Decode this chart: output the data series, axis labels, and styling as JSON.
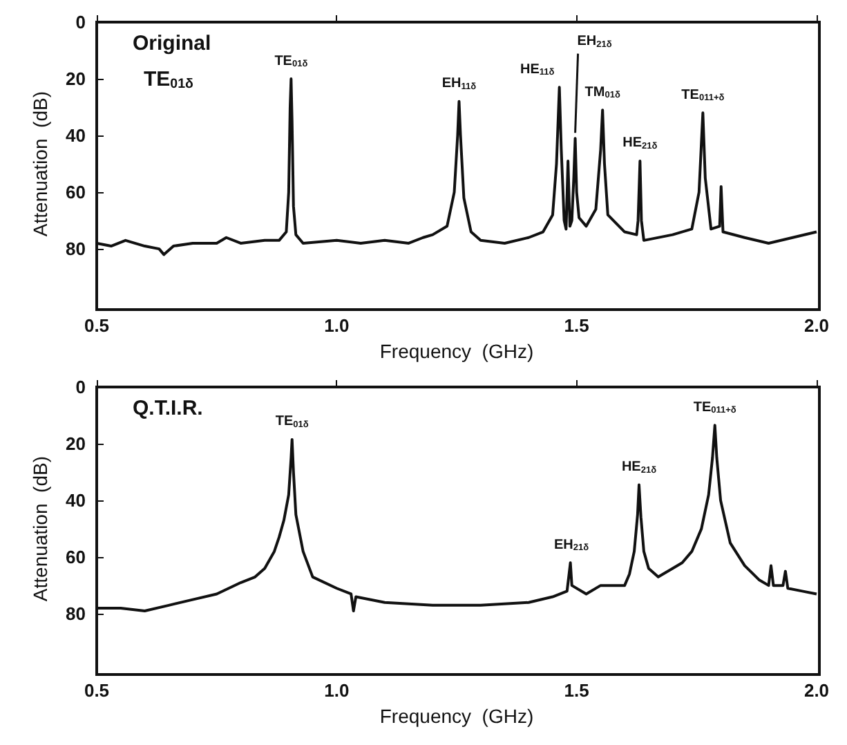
{
  "chart_data": [
    {
      "type": "line",
      "xlabel": "Frequency  (GHz)",
      "ylabel": "Attenuation  (dB)",
      "xlim": [
        0.5,
        2.0
      ],
      "ylim": [
        100,
        0
      ],
      "xticks": [
        {
          "value": 0.5,
          "label": "0.5"
        },
        {
          "value": 1.0,
          "label": "1.0"
        },
        {
          "value": 1.5,
          "label": "1.5"
        },
        {
          "value": 2.0,
          "label": "2.0"
        }
      ],
      "yticks": [
        0,
        20,
        40,
        60,
        80
      ],
      "grid": false,
      "marker": "none",
      "line_style": "solid",
      "series": [
        {
          "color": "#111111",
          "x": [
            0.5,
            0.53,
            0.56,
            0.6,
            0.63,
            0.64,
            0.66,
            0.7,
            0.75,
            0.77,
            0.8,
            0.85,
            0.88,
            0.895,
            0.9,
            0.903,
            0.905,
            0.907,
            0.91,
            0.915,
            0.93,
            1.0,
            1.05,
            1.1,
            1.15,
            1.18,
            1.2,
            1.23,
            1.245,
            1.252,
            1.255,
            1.258,
            1.265,
            1.28,
            1.3,
            1.35,
            1.4,
            1.43,
            1.45,
            1.458,
            1.464,
            1.468,
            1.474,
            1.478,
            1.482,
            1.486,
            1.49,
            1.494,
            1.497,
            1.5,
            1.505,
            1.52,
            1.54,
            1.55,
            1.554,
            1.558,
            1.565,
            1.6,
            1.625,
            1.628,
            1.632,
            1.635,
            1.64,
            1.7,
            1.74,
            1.755,
            1.763,
            1.768,
            1.78,
            1.798,
            1.801,
            1.805,
            1.85,
            1.9,
            1.95,
            2.0
          ],
          "values": [
            78,
            79,
            77,
            79,
            80,
            82,
            79,
            78,
            78,
            76,
            78,
            77,
            77,
            74,
            60,
            30,
            20,
            35,
            65,
            75,
            78,
            77,
            78,
            77,
            78,
            76,
            75,
            72,
            60,
            40,
            28,
            40,
            62,
            74,
            77,
            78,
            76,
            74,
            68,
            50,
            23,
            45,
            70,
            73,
            49,
            72,
            70,
            55,
            41,
            60,
            69,
            72,
            66,
            45,
            31,
            50,
            68,
            74,
            75,
            70,
            49,
            70,
            77,
            75,
            73,
            60,
            32,
            55,
            73,
            72,
            58,
            74,
            76,
            78,
            76,
            74
          ]
        }
      ],
      "annotations": [
        "Original",
        "TE$_{01δ}$",
        {
          "text": "TE$_{01δ}$",
          "x": 0.905,
          "y": 20
        },
        {
          "text": "EH$_{11δ}$",
          "x": 1.255,
          "y": 28
        },
        {
          "text": "HE$_{11δ}$",
          "x": 1.464,
          "y": 23
        },
        {
          "text": "EH$_{21δ}$",
          "x": 1.497,
          "y": 41
        },
        {
          "text": "TM$_{01δ}$",
          "x": 1.554,
          "y": 31
        },
        {
          "text": "HE$_{21δ}$",
          "x": 1.632,
          "y": 49
        },
        {
          "text": "TE$_{011+δ}$",
          "x": 1.763,
          "y": 32
        }
      ]
    },
    {
      "type": "line",
      "xlabel": "Frequency  (GHz)",
      "ylabel": "Attenuation  (dB)",
      "xlim": [
        0.5,
        2.0
      ],
      "ylim": [
        100,
        0
      ],
      "xticks": [
        {
          "value": 0.5,
          "label": "0.5"
        },
        {
          "value": 1.0,
          "label": "1.0"
        },
        {
          "value": 1.5,
          "label": "1.5"
        },
        {
          "value": 2.0,
          "label": "2.0"
        }
      ],
      "yticks": [
        0,
        20,
        40,
        60,
        80
      ],
      "grid": false,
      "marker": "none",
      "line_style": "solid",
      "series": [
        {
          "color": "#111111",
          "x": [
            0.5,
            0.55,
            0.6,
            0.65,
            0.7,
            0.75,
            0.8,
            0.83,
            0.85,
            0.87,
            0.88,
            0.89,
            0.9,
            0.905,
            0.907,
            0.91,
            0.915,
            0.93,
            0.95,
            1.0,
            1.03,
            1.035,
            1.04,
            1.1,
            1.2,
            1.3,
            1.4,
            1.45,
            1.48,
            1.487,
            1.49,
            1.52,
            1.55,
            1.6,
            1.61,
            1.62,
            1.627,
            1.63,
            1.634,
            1.64,
            1.65,
            1.67,
            1.7,
            1.72,
            1.74,
            1.76,
            1.775,
            1.783,
            1.788,
            1.792,
            1.8,
            1.82,
            1.85,
            1.88,
            1.9,
            1.905,
            1.91,
            1.93,
            1.935,
            1.94,
            1.97,
            2.0
          ],
          "values": [
            78,
            78,
            79,
            77,
            75,
            73,
            69,
            67,
            64,
            58,
            53,
            47,
            38,
            25,
            18.5,
            30,
            45,
            58,
            67,
            71,
            73,
            79,
            74,
            76,
            77,
            77,
            76,
            74,
            72,
            62,
            70,
            73,
            70,
            70,
            66,
            58,
            45,
            34.5,
            46,
            58,
            64,
            67,
            64,
            62,
            58,
            50,
            38,
            25,
            13.5,
            25,
            40,
            55,
            63,
            68,
            70,
            63,
            70,
            70,
            65,
            71,
            72,
            73
          ]
        }
      ],
      "annotations": [
        "Q.T.I.R.",
        {
          "text": "TE$_{01δ}$",
          "x": 0.907,
          "y": 18.5
        },
        {
          "text": "EH$_{21δ}$",
          "x": 1.489,
          "y": 62
        },
        {
          "text": "HE$_{21δ}$",
          "x": 1.63,
          "y": 34.5
        },
        {
          "text": "TE$_{011+δ}$",
          "x": 1.788,
          "y": 13.5
        }
      ]
    }
  ]
}
